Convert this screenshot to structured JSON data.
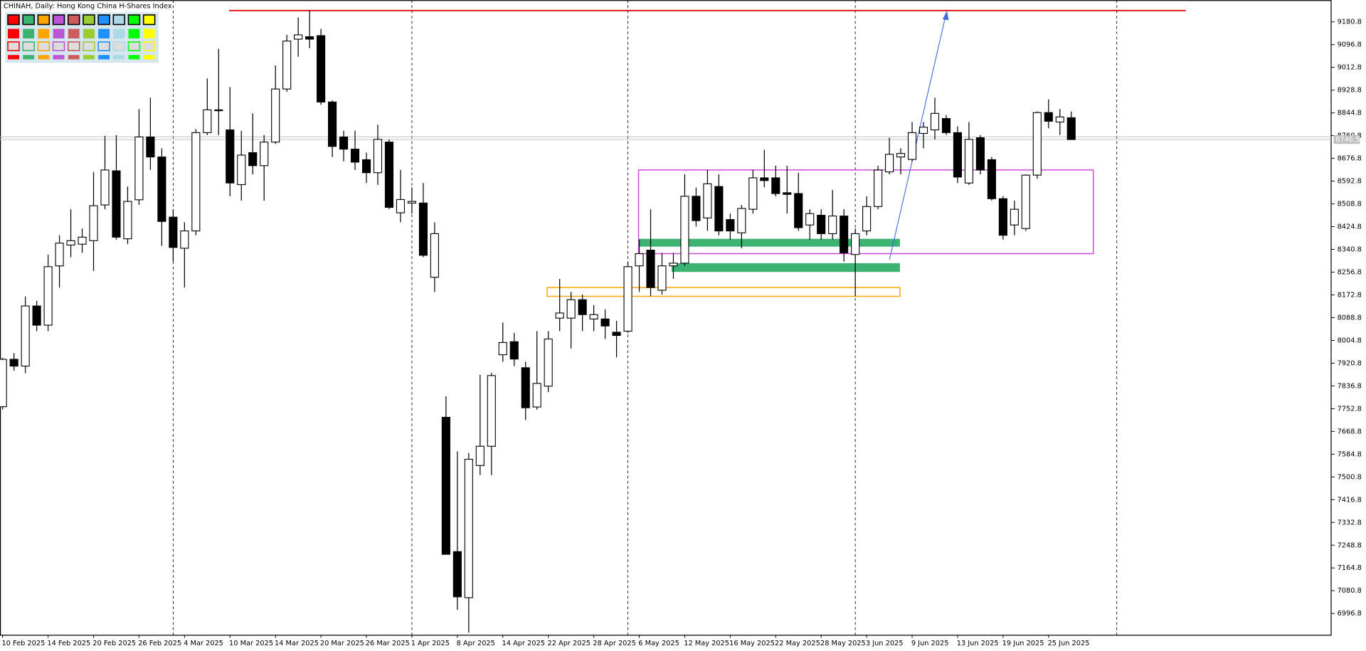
{
  "chart_data": {
    "type": "candlestick",
    "title": "CHINAH, Daily:  Hong Kong China H-Shares Index",
    "categories": [
      "10 Feb 2025",
      null,
      null,
      null,
      "14 Feb 2025",
      null,
      null,
      null,
      "20 Feb 2025",
      null,
      null,
      null,
      "26 Feb 2025",
      null,
      null,
      null,
      "4 Mar 2025",
      null,
      null,
      null,
      "10 Mar 2025",
      null,
      null,
      null,
      "14 Mar 2025",
      null,
      null,
      null,
      "20 Mar 2025",
      null,
      null,
      null,
      "26 Mar 2025",
      null,
      null,
      null,
      "1 Apr 2025",
      null,
      null,
      null,
      "8 Apr 2025",
      null,
      null,
      null,
      "14 Apr 2025",
      null,
      null,
      null,
      "22 Apr 2025",
      null,
      null,
      null,
      "28 Apr 2025",
      null,
      null,
      null,
      "6 May 2025",
      null,
      null,
      null,
      "12 May 2025",
      null,
      null,
      null,
      "16 May 2025",
      null,
      null,
      null,
      "22 May 2025",
      null,
      null,
      null,
      "28 May 2025",
      null,
      null,
      null,
      "3 Jun 2025",
      null,
      null,
      null,
      "9 Jun 2025",
      null,
      null,
      null,
      "13 Jun 2025",
      null,
      null,
      null,
      "19 Jun 2025",
      null,
      null,
      null,
      "25 Jun 2025",
      null,
      null
    ],
    "open": [
      7760,
      7935,
      7910,
      8132,
      8061,
      8280,
      8357,
      8360,
      8373,
      8505,
      8631,
      8380,
      8524,
      8756,
      8682,
      8460,
      8345,
      8409,
      8772,
      8856,
      8782,
      8580,
      8698,
      8650,
      8737,
      8933,
      9117,
      9126,
      9130,
      8885,
      8756,
      8711,
      8672,
      8624,
      8737,
      8476,
      8512,
      8512,
      8238,
      7721,
      7225,
      7055,
      7543,
      7614,
      7952,
      8000,
      7904,
      7759,
      7836,
      8087,
      8087,
      8155,
      8084,
      8084,
      8035,
      8039,
      8280,
      8338,
      8190,
      8280,
      8290,
      8537,
      8457,
      8573,
      8451,
      8402,
      8489,
      8605,
      8605,
      8550,
      8547,
      8431,
      8467,
      8399,
      8464,
      8322,
      8409,
      8499,
      8627,
      8682,
      8673,
      8769,
      8782,
      8824,
      8772,
      8586,
      8753,
      8672,
      8528,
      8431,
      8418,
      8615,
      8846,
      8811,
      8827
    ],
    "high": [
      7940,
      7958,
      8167,
      8151,
      8322,
      8393,
      8489,
      8418,
      8627,
      8760,
      8763,
      8573,
      8859,
      8901,
      8714,
      8489,
      8441,
      8785,
      8972,
      9081,
      8940,
      8779,
      8843,
      8763,
      9020,
      9133,
      9197,
      9223,
      9155,
      8891,
      8779,
      8779,
      8698,
      8801,
      8747,
      8634,
      8570,
      8586,
      8441,
      7798,
      7595,
      7589,
      7878,
      7885,
      8071,
      8032,
      7926,
      8039,
      8039,
      8232,
      8184,
      8174,
      8135,
      8119,
      8077,
      8296,
      8377,
      8489,
      8328,
      8328,
      8618,
      8569,
      8634,
      8618,
      8473,
      8505,
      8634,
      8708,
      8650,
      8650,
      8624,
      8489,
      8489,
      8560,
      8489,
      8418,
      8537,
      8650,
      8753,
      8714,
      8811,
      8811,
      8901,
      8837,
      8795,
      8811,
      8763,
      8682,
      8537,
      8521,
      8618,
      8850,
      8895,
      8859,
      8850
    ],
    "low": [
      7750,
      7893,
      7884,
      8039,
      8039,
      8200,
      8312,
      8328,
      8261,
      8489,
      8377,
      8360,
      8505,
      8634,
      8354,
      8296,
      8200,
      8393,
      8763,
      8763,
      8537,
      8521,
      8618,
      8521,
      8730,
      8923,
      9052,
      9084,
      8875,
      8682,
      8666,
      8634,
      8586,
      8579,
      8489,
      8441,
      8473,
      8312,
      8184,
      7215,
      7010,
      6926,
      7508,
      7508,
      7926,
      7910,
      7711,
      7749,
      7814,
      8039,
      7975,
      8039,
      8039,
      8010,
      7942,
      8032,
      8184,
      8168,
      8174,
      8232,
      8280,
      8425,
      8409,
      8393,
      8377,
      8345,
      8473,
      8570,
      8537,
      8473,
      8409,
      8377,
      8377,
      8377,
      8296,
      8168,
      8393,
      8489,
      8618,
      8618,
      8666,
      8714,
      8747,
      8763,
      8586,
      8579,
      8618,
      8521,
      8377,
      8393,
      8409,
      8602,
      8788,
      8763,
      8746.5
    ],
    "close": [
      7935,
      7910,
      8132,
      8061,
      8277,
      8364,
      8373,
      8386,
      8502,
      8634,
      8386,
      8518,
      8756,
      8682,
      8444,
      8348,
      8409,
      8772,
      8856,
      8853,
      8586,
      8689,
      8650,
      8737,
      8933,
      9110,
      9133,
      9117,
      8885,
      8721,
      8711,
      8663,
      8624,
      8747,
      8496,
      8525,
      8518,
      8319,
      8399,
      7215,
      7058,
      7566,
      7614,
      7875,
      7997,
      7936,
      7756,
      7846,
      8010,
      8106,
      8155,
      8100,
      8100,
      8058,
      8023,
      8277,
      8325,
      8200,
      8280,
      8290,
      8537,
      8447,
      8583,
      8409,
      8409,
      8492,
      8605,
      8595,
      8547,
      8544,
      8421,
      8473,
      8399,
      8464,
      8328,
      8399,
      8499,
      8634,
      8692,
      8695,
      8772,
      8792,
      8843,
      8772,
      8608,
      8747,
      8634,
      8528,
      8393,
      8489,
      8615,
      8846,
      8814,
      8830,
      8746.5
    ],
    "up_color": "#ffffff",
    "down_color": "#000000",
    "line_color": "#000000",
    "last_price": 8746.5,
    "ylim": [
      6916.4,
      9261.2
    ],
    "yticks": [
      6996.8,
      7080.8,
      7164.8,
      7248.8,
      7332.8,
      7416.8,
      7500.8,
      7584.8,
      7668.8,
      7752.8,
      7836.8,
      7920.8,
      8004.8,
      8088.8,
      8172.8,
      8256.8,
      8340.8,
      8424.8,
      8508.8,
      8592.8,
      8676.8,
      8760.8,
      8844.8,
      8928.8,
      9012.8,
      9096.8,
      9180.8
    ]
  }
}
